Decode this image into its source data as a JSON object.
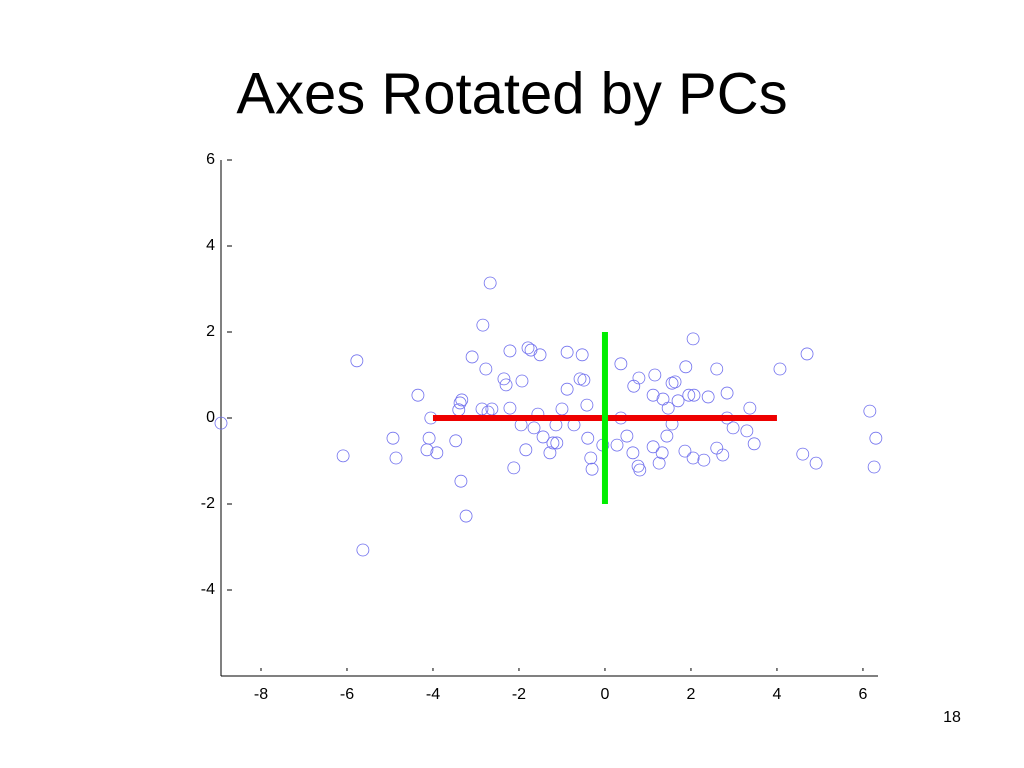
{
  "chart_data": {
    "type": "scatter",
    "title": "Axes Rotated by PCs",
    "xlim": [
      -8.93,
      6.35
    ],
    "ylim": [
      -6,
      6
    ],
    "xticks": [
      -8,
      -6,
      -4,
      -2,
      0,
      2,
      4,
      6
    ],
    "yticks": [
      -4,
      -2,
      0,
      2,
      4,
      6
    ],
    "series": [
      {
        "type": "scatter",
        "color": "#7070ee",
        "x": [
          -8.93,
          -2.67,
          -2.84,
          -5.77,
          -3.09,
          -2.77,
          -2.21,
          -1.79,
          -1.72,
          -1.51,
          -0.88,
          -0.53,
          -2.35,
          -2.3,
          -1.93,
          -0.88,
          -0.58,
          -0.49,
          -4.35,
          -3.33,
          -3.37,
          -3.4,
          -2.86,
          -2.63,
          -2.72,
          -2.21,
          -4.05,
          -1.56,
          -1.0,
          -0.42,
          -1.95,
          -1.65,
          -1.14,
          -0.72,
          -1.44,
          -1.21,
          -1.12,
          -0.4,
          -4.93,
          -4.09,
          -3.47,
          -4.14,
          -3.91,
          -1.84,
          -1.28,
          -0.33,
          -4.86,
          -6.09,
          -2.12,
          -0.3,
          -3.35,
          -3.23,
          -5.63,
          2.05,
          0.37,
          4.7,
          4.07,
          1.88,
          2.6,
          0.79,
          1.16,
          1.63,
          1.56,
          0.67,
          1.12,
          1.35,
          1.7,
          1.95,
          2.07,
          2.4,
          2.84,
          1.47,
          3.37,
          6.16,
          0.37,
          2.84,
          1.56,
          1.44,
          0.51,
          0.28,
          -0.05,
          2.98,
          3.3,
          3.47,
          6.3,
          1.12,
          1.86,
          2.6,
          0.65,
          1.33,
          2.05,
          2.3,
          2.74,
          4.6,
          4.91,
          6.26,
          0.77,
          0.81,
          1.26
        ],
        "y": [
          -0.12,
          3.14,
          2.16,
          1.33,
          1.42,
          1.14,
          1.56,
          1.63,
          1.58,
          1.47,
          1.53,
          1.47,
          0.91,
          0.77,
          0.86,
          0.67,
          0.91,
          0.88,
          0.53,
          0.42,
          0.35,
          0.19,
          0.21,
          0.21,
          0.14,
          0.23,
          0,
          0.09,
          0.21,
          0.3,
          -0.16,
          -0.23,
          -0.16,
          -0.16,
          -0.44,
          -0.58,
          -0.58,
          -0.47,
          -0.47,
          -0.47,
          -0.53,
          -0.74,
          -0.81,
          -0.74,
          -0.81,
          -0.93,
          -0.93,
          -0.88,
          -1.16,
          -1.19,
          -1.47,
          -2.28,
          -3.07,
          1.84,
          1.26,
          1.49,
          1.14,
          1.19,
          1.14,
          0.93,
          1.0,
          0.84,
          0.81,
          0.74,
          0.53,
          0.44,
          0.4,
          0.53,
          0.53,
          0.49,
          0.58,
          0.23,
          0.23,
          0.16,
          0,
          0,
          -0.14,
          -0.42,
          -0.42,
          -0.63,
          -0.63,
          -0.23,
          -0.3,
          -0.6,
          -0.47,
          -0.67,
          -0.77,
          -0.7,
          -0.81,
          -0.81,
          -0.93,
          -0.98,
          -0.86,
          -0.84,
          -1.05,
          -1.14,
          -1.12,
          -1.21,
          -1.05
        ]
      },
      {
        "type": "line",
        "color": "#ee0000",
        "x": [
          -4,
          4
        ],
        "y": [
          0,
          0
        ]
      },
      {
        "type": "line",
        "color": "#00ee00",
        "x": [
          0,
          0
        ],
        "y": [
          -2,
          2
        ]
      }
    ]
  },
  "slide_number": "18"
}
